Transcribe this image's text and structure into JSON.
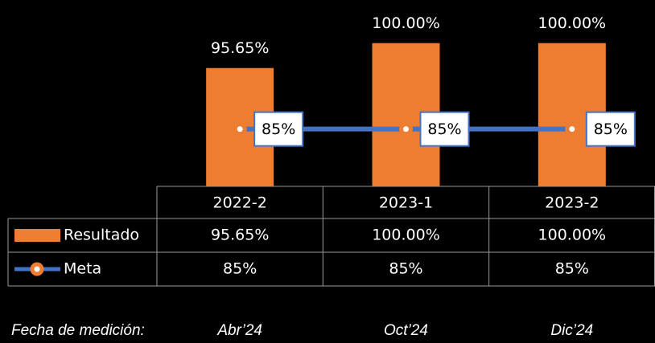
{
  "chart_data": {
    "type": "bar",
    "categories": [
      "2022-2",
      "2023-1",
      "2023-2"
    ],
    "series": [
      {
        "name": "Resultado",
        "color": "#ed7d31",
        "values": [
          95.65,
          100,
          100
        ],
        "value_labels": [
          "95.65%",
          "100.00%",
          "100.00%"
        ]
      },
      {
        "name": "Meta",
        "type": "line",
        "color": "#4472c4",
        "values": [
          85,
          85,
          85
        ],
        "value_labels": [
          "85%",
          "85%",
          "85%"
        ]
      }
    ],
    "ylim": [
      75,
      105
    ],
    "footer": {
      "label": "Fecha de medición:",
      "dates": [
        "Abr’24",
        "Oct’24",
        "Dic’24"
      ]
    }
  }
}
